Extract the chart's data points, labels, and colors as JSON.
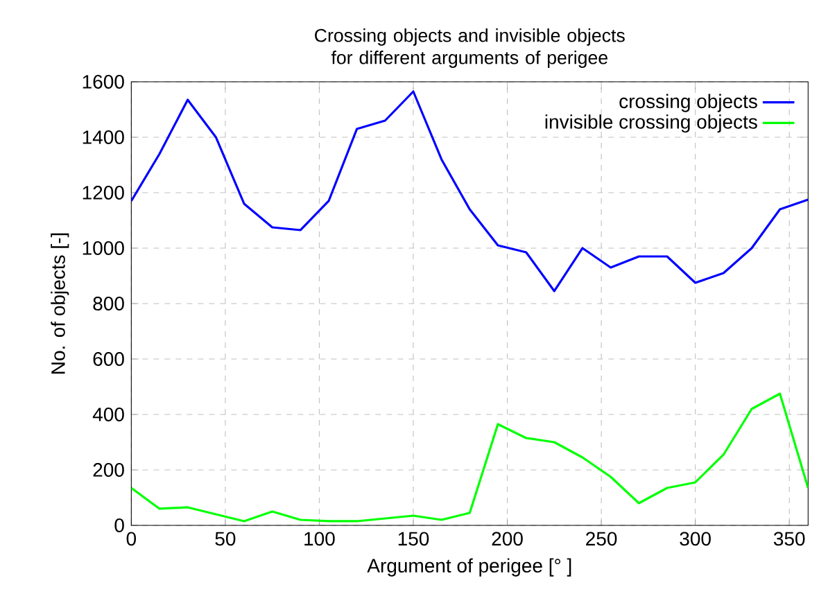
{
  "chart_data": {
    "type": "line",
    "title": "Crossing objects and invisible objects\nfor different arguments of perigee",
    "xlabel": "Argument of perigee [° ]",
    "ylabel": "No. of objects [-]",
    "x": [
      0,
      15,
      30,
      45,
      60,
      75,
      90,
      105,
      120,
      135,
      150,
      165,
      180,
      195,
      210,
      225,
      240,
      255,
      270,
      285,
      300,
      315,
      330,
      345,
      360
    ],
    "series": [
      {
        "name": "crossing objects",
        "color": "#0000ff",
        "values": [
          1170,
          1340,
          1535,
          1400,
          1160,
          1075,
          1065,
          1170,
          1430,
          1460,
          1565,
          1320,
          1140,
          1010,
          985,
          845,
          1000,
          930,
          970,
          970,
          875,
          910,
          1000,
          1140,
          1175
        ]
      },
      {
        "name": "invisible crossing objects",
        "color": "#00ff00",
        "values": [
          135,
          60,
          65,
          40,
          15,
          50,
          20,
          15,
          15,
          25,
          35,
          20,
          45,
          365,
          315,
          300,
          245,
          175,
          80,
          135,
          155,
          255,
          420,
          475,
          135
        ]
      }
    ],
    "xlim": [
      0,
      360
    ],
    "ylim": [
      0,
      1600
    ],
    "xticks": [
      0,
      50,
      100,
      150,
      200,
      250,
      300,
      350
    ],
    "yticks": [
      0,
      200,
      400,
      600,
      800,
      1000,
      1200,
      1400,
      1600
    ],
    "grid": true,
    "legend": "top right",
    "marker": "none",
    "line_style": "solid"
  }
}
